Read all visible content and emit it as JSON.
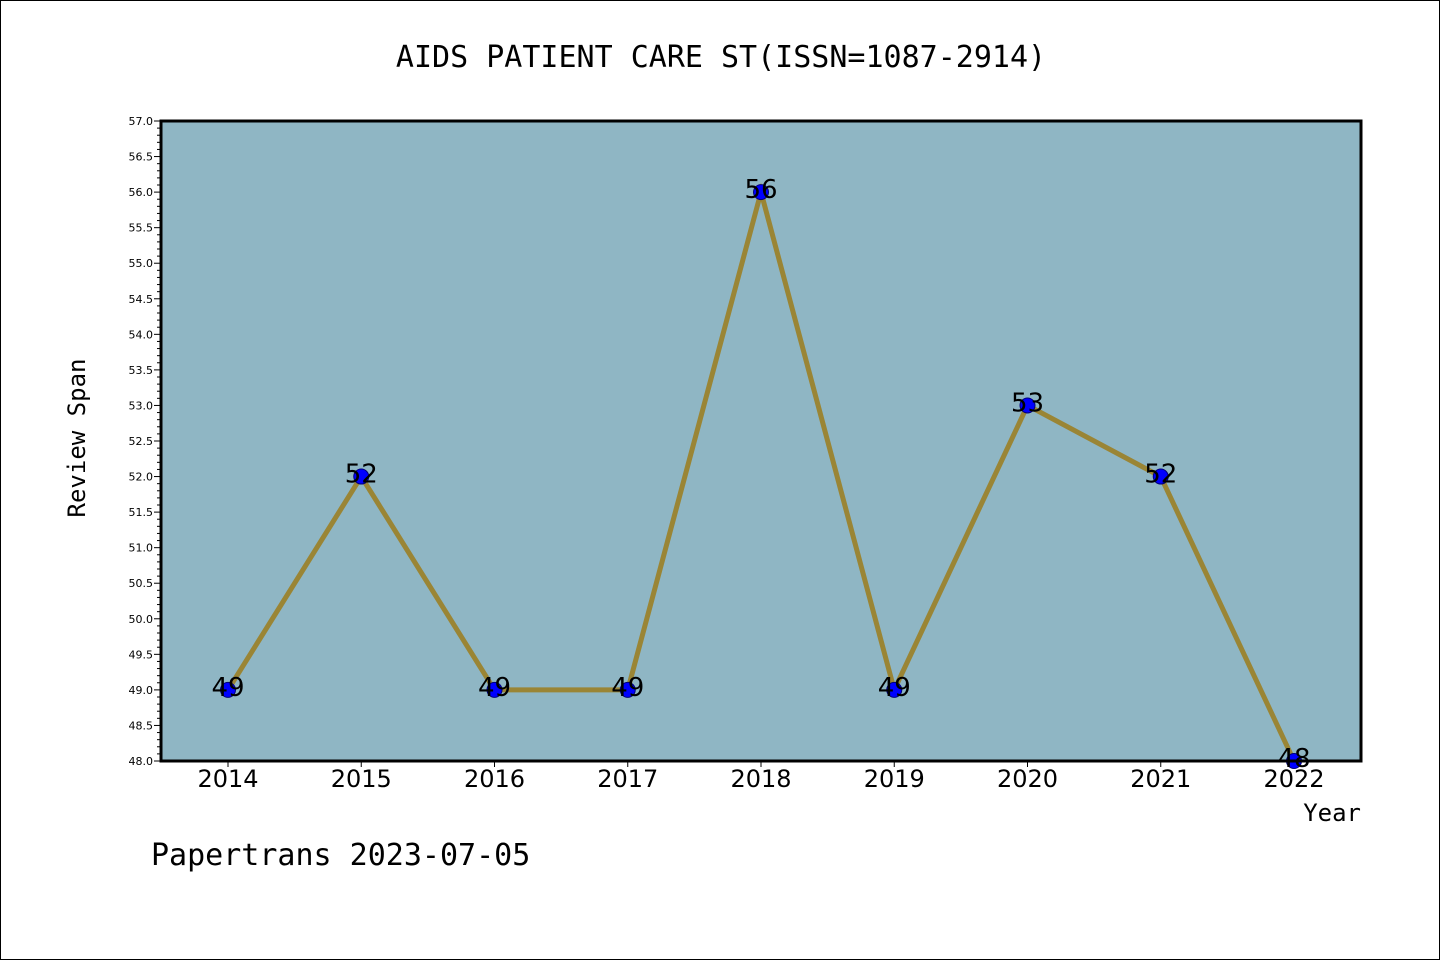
{
  "chart_data": {
    "type": "line",
    "title": "AIDS PATIENT CARE ST(ISSN=1087-2914)",
    "xlabel": "Year",
    "ylabel": "Review Span",
    "categories": [
      "2014",
      "2015",
      "2016",
      "2017",
      "2018",
      "2019",
      "2020",
      "2021",
      "2022"
    ],
    "series": [
      {
        "values": [
          49,
          52,
          49,
          49,
          56,
          49,
          53,
          52,
          48
        ]
      }
    ],
    "data_labels": [
      "49",
      "52",
      "49",
      "49",
      "56",
      "49",
      "53",
      "52",
      "48"
    ],
    "ylim": [
      48.0,
      57.0
    ],
    "ytick_step": 0.5,
    "ytick_labels": [
      "48.0",
      "48.5",
      "49.0",
      "49.5",
      "50.0",
      "50.5",
      "51.0",
      "51.5",
      "52.0",
      "52.5",
      "53.0",
      "53.5",
      "54.0",
      "54.5",
      "55.0",
      "55.5",
      "56.0",
      "56.5",
      "57.0"
    ],
    "grid": false,
    "legend": "none",
    "colors": {
      "plot_background": "#8fb6c4",
      "line": "#9a8535",
      "marker": "#0000ff",
      "marker_edge": "#00007a"
    }
  },
  "footer": {
    "text": "Papertrans 2023-07-05"
  }
}
